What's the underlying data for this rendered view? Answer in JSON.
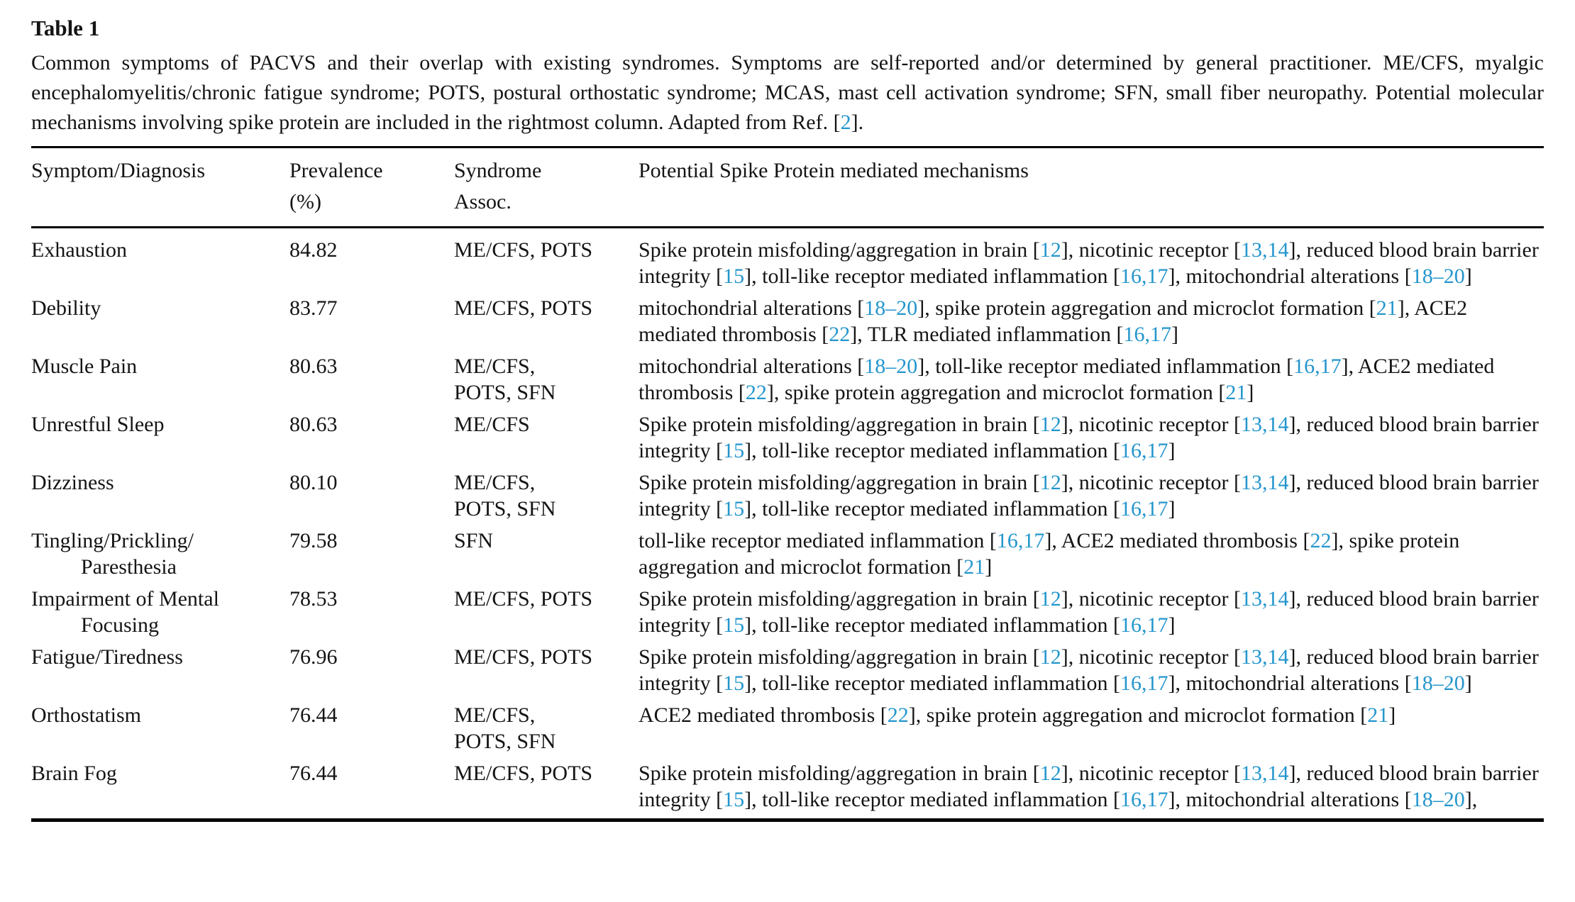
{
  "page": {
    "background": "#ffffff",
    "text_color": "#141414",
    "link_color": "#2496cd"
  },
  "table": {
    "label": "Table 1",
    "caption": "Common symptoms of PACVS and their overlap with existing syndromes. Symptoms are self-reported and/​or determined by general practitioner. ME/​CFS, myalgic encephalomyelitis/​chronic fatigue syndrome; POTS, postural orthostatic syndrome; MCAS, mast cell activation syndrome; SFN, small fiber neuropathy. Potential molecular mechanisms involving spike protein are included in the rightmost column. Adapted from Ref. [2].",
    "columns": [
      "Symptom/Diagnosis",
      "Prevalence (%)",
      "Syndrome Assoc.",
      "Potential Spike Protein mediated mechanisms"
    ],
    "rows": [
      {
        "symptom": "Exhaustion",
        "prevalence": "84.82",
        "syndrome": "ME/CFS, POTS",
        "mechanism": "Spike protein misfolding/aggregation in brain [12], nicotinic receptor [13,14], reduced blood brain barrier integrity [15], toll-like receptor mediated inflammation [16,17], mitochondrial alterations [18–20]"
      },
      {
        "symptom": "Debility",
        "prevalence": "83.77",
        "syndrome": "ME/CFS, POTS",
        "mechanism": "mitochondrial alterations [18–20], spike protein aggregation and microclot formation [21], ACE2 mediated thrombosis [22], TLR mediated inflammation [16,17]"
      },
      {
        "symptom": "Muscle Pain",
        "prevalence": "80.63",
        "syndrome": "ME/CFS, POTS, SFN",
        "mechanism": "mitochondrial alterations [18–20], toll-like receptor mediated inflammation [16,17], ACE2 mediated thrombosis [22], spike protein aggregation and microclot formation [21]"
      },
      {
        "symptom": "Unrestful Sleep",
        "prevalence": "80.63",
        "syndrome": "ME/CFS",
        "mechanism": "Spike protein misfolding/aggregation in brain [12], nicotinic receptor [13,14], reduced blood brain barrier integrity [15], toll-like receptor mediated inflammation [16,17]"
      },
      {
        "symptom": "Dizziness",
        "prevalence": "80.10",
        "syndrome": "ME/CFS, POTS, SFN",
        "mechanism": "Spike protein misfolding/aggregation in brain [12], nicotinic receptor [13,14], reduced blood brain barrier integrity [15], toll-like receptor mediated inflammation [16,17]"
      },
      {
        "symptom": "Tingling/Prickling/​Paresthesia",
        "prevalence": "79.58",
        "syndrome": "SFN",
        "mechanism": "toll-like receptor mediated inflammation [16,17], ACE2 mediated thrombosis [22], spike protein aggregation and microclot formation [21]"
      },
      {
        "symptom": "Impairment of Mental Focusing",
        "prevalence": "78.53",
        "syndrome": "ME/CFS, POTS",
        "mechanism": "Spike protein misfolding/aggregation in brain [12], nicotinic receptor [13,14], reduced blood brain barrier integrity [15], toll-like receptor mediated inflammation [16,17]"
      },
      {
        "symptom": "Fatigue/Tiredness",
        "prevalence": "76.96",
        "syndrome": "ME/CFS, POTS",
        "mechanism": "Spike protein misfolding/aggregation in brain [12], nicotinic receptor [13,14], reduced blood brain barrier integrity [15], toll-like receptor mediated inflammation [16,17], mitochondrial alterations [18–20]"
      },
      {
        "symptom": "Orthostatism",
        "prevalence": "76.44",
        "syndrome": "ME/CFS, POTS, SFN",
        "mechanism": "ACE2 mediated thrombosis [22], spike protein aggregation and microclot formation [21]"
      },
      {
        "symptom": "Brain Fog",
        "prevalence": "76.44",
        "syndrome": "ME/CFS, POTS",
        "mechanism": "Spike protein misfolding/aggregation in brain [12], nicotinic receptor [13,14], reduced blood brain barrier integrity [15], toll-like receptor mediated inflammation [16,17], mitochondrial alterations [18–20],"
      }
    ]
  }
}
